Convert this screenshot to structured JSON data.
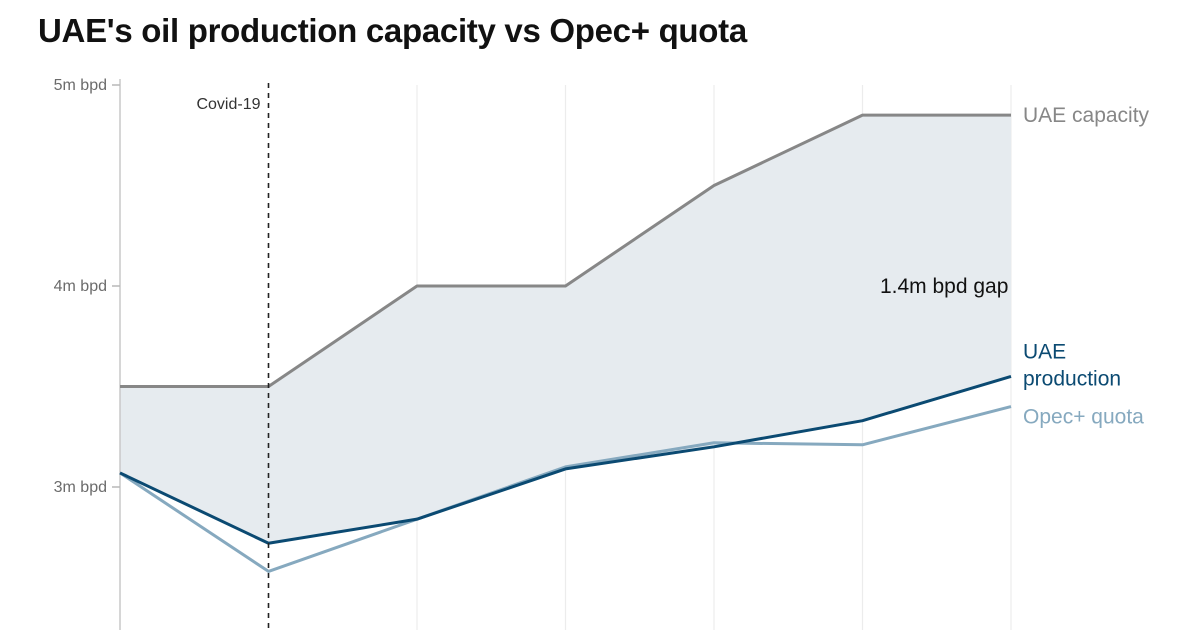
{
  "chart_data": {
    "type": "line",
    "title": "UAE's oil production capacity vs Opec+ quota",
    "xlabel": "",
    "ylabel": "",
    "x": [
      0,
      1,
      2,
      3,
      4,
      5,
      6
    ],
    "ylim": [
      2.3,
      5.0
    ],
    "yticks": [
      {
        "value": 5,
        "label": "5m bpd"
      },
      {
        "value": 4,
        "label": "4m bpd"
      },
      {
        "value": 3,
        "label": "3m bpd"
      }
    ],
    "series": [
      {
        "name": "UAE capacity",
        "color": "#878787",
        "values": [
          3.5,
          3.5,
          4.0,
          4.0,
          4.5,
          4.85,
          4.85
        ]
      },
      {
        "name": "UAE production",
        "color": "#0b4a72",
        "values": [
          3.07,
          2.72,
          2.84,
          3.09,
          3.2,
          3.33,
          3.55
        ]
      },
      {
        "name": "Opec+ quota",
        "color": "#86a9bf",
        "values": [
          3.07,
          2.58,
          2.84,
          3.1,
          3.22,
          3.21,
          3.4
        ]
      }
    ],
    "legend_labels": [
      {
        "series": "UAE capacity",
        "lines": [
          "UAE capacity"
        ]
      },
      {
        "series": "UAE production",
        "lines": [
          "UAE",
          "production"
        ]
      },
      {
        "series": "Opec+ quota",
        "lines": [
          "Opec+ quota"
        ]
      }
    ],
    "annotations": [
      {
        "type": "vline",
        "x": 1,
        "label": "Covid-19"
      },
      {
        "type": "text",
        "x": 5.55,
        "y": 4.0,
        "label": "1.4m bpd gap"
      }
    ],
    "fill_between": {
      "upper": "UAE capacity",
      "lower": "UAE production",
      "color": "#e6ebef"
    }
  }
}
